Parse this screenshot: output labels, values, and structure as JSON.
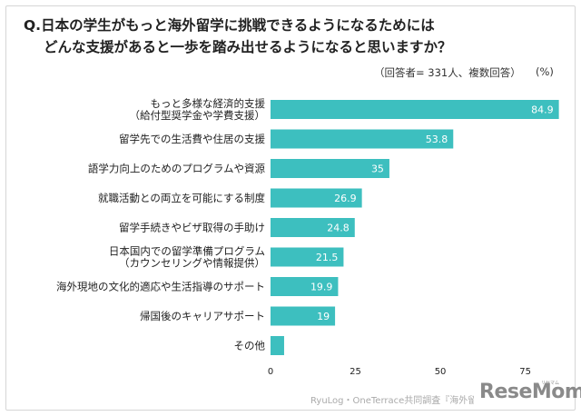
{
  "header": {
    "question_line1": "Q.日本の学生がもっと海外留学に挑戦できるようになるためには",
    "question_line2": "どんな支援があると一歩を踏み出せるようになると思いますか？",
    "respondents": "（回答者= 331人、複数回答）",
    "unit": "(%)"
  },
  "footer": {
    "source": "RyuLog・OneTerrace共同調査『海外留学に関"
  },
  "logo": {
    "text": "ReseMom",
    "subtext": "リセマム"
  },
  "chart_data": {
    "type": "bar",
    "orientation": "horizontal",
    "bar_color": "#3dbfbf",
    "categories": [
      [
        "もっと多様な経済的支援",
        "（給付型奨学金や学費支援）"
      ],
      [
        "留学先での生活費や住居の支援"
      ],
      [
        "語学力向上のためのプログラムや資源"
      ],
      [
        "就職活動との両立を可能にする制度"
      ],
      [
        "留学手続きやビザ取得の手助け"
      ],
      [
        "日本国内での留学準備プログラム",
        "（カウンセリングや情報提供）"
      ],
      [
        "海外現地の文化的適応や生活指導のサポート"
      ],
      [
        "帰国後のキャリアサポート"
      ],
      [
        "その他"
      ]
    ],
    "values": [
      84.9,
      53.8,
      35,
      26.9,
      24.8,
      21.5,
      19.9,
      19,
      4
    ],
    "value_labels": [
      "84.9",
      "53.8",
      "35",
      "26.9",
      "24.8",
      "21.5",
      "19.9",
      "19",
      ""
    ],
    "xlim": [
      0,
      85
    ],
    "xticks": [
      "0",
      "25",
      "50",
      "75"
    ],
    "grid": false,
    "legend": "none"
  }
}
